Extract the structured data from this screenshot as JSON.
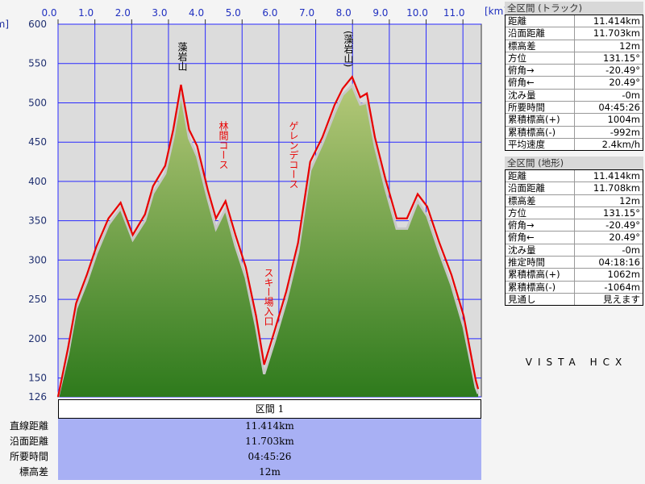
{
  "chart_data": {
    "type": "area",
    "xlabel": "[km]",
    "ylabel": "[m]",
    "x": [
      0,
      0.27,
      0.49,
      0.78,
      1.04,
      1.37,
      1.7,
      2.03,
      2.36,
      2.58,
      2.91,
      3.13,
      3.34,
      3.56,
      3.78,
      4.07,
      4.29,
      4.55,
      4.82,
      5.1,
      5.38,
      5.6,
      5.87,
      6.2,
      6.52,
      6.85,
      7.18,
      7.51,
      7.73,
      7.99,
      8.21,
      8.39,
      8.61,
      8.89,
      9.2,
      9.48,
      9.77,
      10.03,
      10.36,
      10.69,
      11.02,
      11.35,
      11.414
    ],
    "series": [
      {
        "color": "#c8c8c8",
        "fill": [
          "#b4c878",
          "#2e7a1c"
        ],
        "values": [
          126,
          180,
          238,
          272,
          308,
          345,
          366,
          326,
          350,
          385,
          410,
          455,
          512,
          455,
          432,
          378,
          340,
          365,
          318,
          278,
          215,
          155,
          195,
          248,
          310,
          414,
          448,
          487,
          510,
          522,
          498,
          500,
          445,
          392,
          340,
          340,
          375,
          356,
          310,
          268,
          215,
          138,
          130
        ]
      },
      {
        "color": "#e80000",
        "values": [
          126,
          188,
          245,
          281,
          317,
          353,
          373,
          332,
          358,
          394,
          420,
          466,
          523,
          466,
          445,
          389,
          353,
          375,
          332,
          291,
          229,
          167,
          208,
          260,
          322,
          425,
          456,
          497,
          518,
          533,
          507,
          512,
          456,
          404,
          353,
          353,
          384,
          368,
          322,
          281,
          229,
          147,
          136
        ]
      }
    ],
    "xlim": [
      0,
      11.5
    ],
    "xticks": [
      {
        "value": 0,
        "label": "0.0"
      },
      {
        "value": 1,
        "label": "1.0"
      },
      {
        "value": 2,
        "label": "2.0"
      },
      {
        "value": 3,
        "label": "3.0"
      },
      {
        "value": 4,
        "label": "4.0"
      },
      {
        "value": 5,
        "label": "5.0"
      },
      {
        "value": 6,
        "label": "6.0"
      },
      {
        "value": 7,
        "label": "7.0"
      },
      {
        "value": 8,
        "label": "8.0"
      },
      {
        "value": 9,
        "label": "9.0"
      },
      {
        "value": 10,
        "label": "10.0"
      },
      {
        "value": 11,
        "label": "11.0"
      }
    ],
    "ylim": [
      126,
      600
    ],
    "yticks": [
      126,
      150,
      200,
      250,
      300,
      350,
      400,
      450,
      500,
      550,
      600
    ],
    "grid": true,
    "annotations": [
      "藻岩山",
      "(藻岩山)",
      "林間コース",
      "ゲレンデコース",
      "スキー場入口"
    ]
  },
  "track_panel": {
    "title": "全区間 (トラック)",
    "rows": [
      [
        "距離",
        "11.414km"
      ],
      [
        "沿面距離",
        "11.703km"
      ],
      [
        "標高差",
        "12m"
      ],
      [
        "方位",
        "131.15°"
      ],
      [
        "俯角→",
        "-20.49°"
      ],
      [
        "俯角←",
        "20.49°"
      ],
      [
        "沈み量",
        "-0m"
      ],
      [
        "所要時間",
        "04:45:26"
      ],
      [
        "累積標高(+)",
        "1004m"
      ],
      [
        "累積標高(-)",
        "-992m"
      ],
      [
        "平均速度",
        "2.4km/h"
      ]
    ]
  },
  "terrain_panel": {
    "title": "全区間 (地形)",
    "rows": [
      [
        "距離",
        "11.414km"
      ],
      [
        "沿面距離",
        "11.708km"
      ],
      [
        "標高差",
        "12m"
      ],
      [
        "方位",
        "131.15°"
      ],
      [
        "俯角→",
        "-20.49°"
      ],
      [
        "俯角←",
        "20.49°"
      ],
      [
        "沈み量",
        "-0m"
      ],
      [
        "推定時間",
        "04:18:16"
      ],
      [
        "累積標高(+)",
        "1062m"
      ],
      [
        "累積標高(-)",
        "-1064m"
      ],
      [
        "見通し",
        "見えます"
      ]
    ]
  },
  "section": {
    "title": "区間 1",
    "labels": [
      "直線距離",
      "沿面距離",
      "所要時間",
      "標高差"
    ],
    "values": [
      "11.414km",
      "11.703km",
      "04:45:26",
      "12m"
    ]
  },
  "brand": "VISTA HCX"
}
